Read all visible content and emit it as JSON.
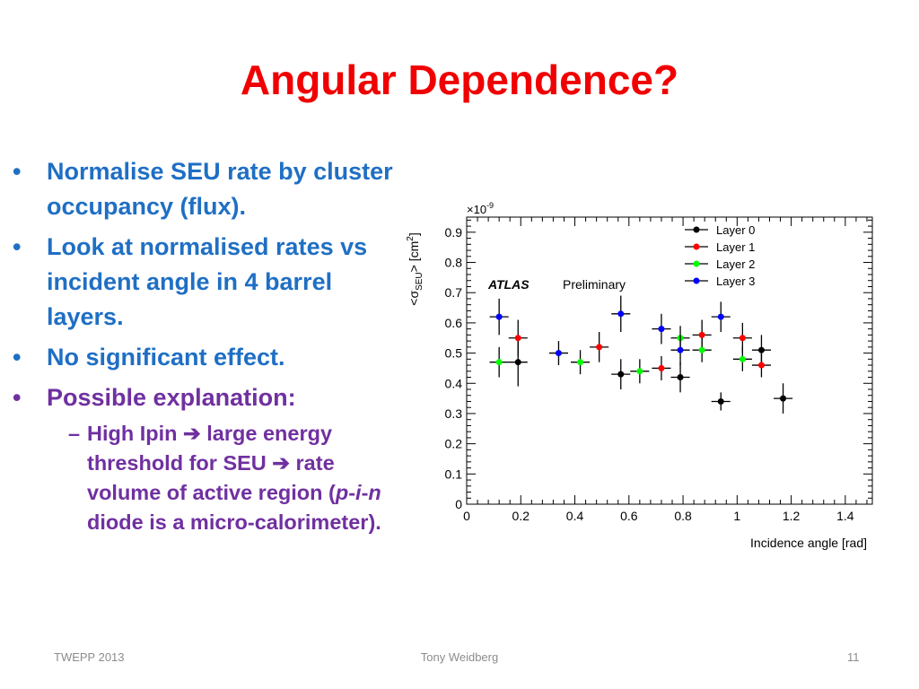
{
  "slide": {
    "title": "Angular Dependence?",
    "bullets": [
      {
        "text": "Normalise SEU rate by cluster occupancy (flux)."
      },
      {
        "text": "Look at normalised rates vs incident angle in 4 barrel layers."
      },
      {
        "text": "No significant effect."
      },
      {
        "text": "Possible explanation:"
      }
    ],
    "sub_bullet": {
      "part1": "High Ipin ",
      "arrow1": "➔",
      "part2": " large energy threshold for SEU ",
      "arrow2": "➔",
      "part3": " rate volume of active region (",
      "p": "p",
      "dash1": "-",
      "i": "i",
      "dash2": "-",
      "n": "n",
      "part4": " diode is a micro-calorimeter)."
    },
    "bullet_char": "•",
    "dash_char": "–"
  },
  "footer": {
    "left": "TWEPP 2013",
    "center": "Tony Weidberg",
    "right": "11"
  },
  "colors": {
    "title": "#f00000",
    "bullet_blue": "#1f6fc4",
    "bullet_purple": "#7030a0",
    "layer0": "#000000",
    "layer1": "#ff0000",
    "layer2": "#00ff00",
    "layer3": "#0000ff"
  },
  "chart_data": {
    "type": "scatter",
    "xlabel": "Incidence angle [rad]",
    "ylabel": "<σSEU> [cm²]",
    "ylabel_parts": {
      "pre": "<σ",
      "sub": "SEU",
      "mid": "> [cm",
      "sup": "2",
      "post": "]"
    },
    "y_multiplier": {
      "times": "×10",
      "exp": "-9"
    },
    "annotation_bold": "ATLAS",
    "annotation_plain": "Preliminary",
    "xlim": [
      0,
      1.5
    ],
    "ylim": [
      0,
      0.95
    ],
    "x_ticks": [
      "0",
      "0.2",
      "0.4",
      "0.6",
      "0.8",
      "1",
      "1.2",
      "1.4"
    ],
    "y_ticks": [
      "0",
      "0.1",
      "0.2",
      "0.3",
      "0.4",
      "0.5",
      "0.6",
      "0.7",
      "0.8",
      "0.9"
    ],
    "legend_position": "top-right",
    "series": [
      {
        "name": "Layer 0",
        "color": "#000000",
        "xerr": 0.035,
        "points": [
          {
            "x": 0.19,
            "y": 0.47,
            "yerr": 0.08
          },
          {
            "x": 0.57,
            "y": 0.43,
            "yerr": 0.05
          },
          {
            "x": 0.79,
            "y": 0.42,
            "yerr": 0.05
          },
          {
            "x": 0.94,
            "y": 0.34,
            "yerr": 0.03
          },
          {
            "x": 1.09,
            "y": 0.51,
            "yerr": 0.05
          },
          {
            "x": 1.17,
            "y": 0.35,
            "yerr": 0.05
          }
        ]
      },
      {
        "name": "Layer 1",
        "color": "#ff0000",
        "xerr": 0.035,
        "points": [
          {
            "x": 0.19,
            "y": 0.55,
            "yerr": 0.06
          },
          {
            "x": 0.49,
            "y": 0.52,
            "yerr": 0.05
          },
          {
            "x": 0.72,
            "y": 0.45,
            "yerr": 0.04
          },
          {
            "x": 0.87,
            "y": 0.56,
            "yerr": 0.05
          },
          {
            "x": 1.02,
            "y": 0.55,
            "yerr": 0.05
          },
          {
            "x": 1.09,
            "y": 0.46,
            "yerr": 0.04
          }
        ]
      },
      {
        "name": "Layer 2",
        "color": "#00ff00",
        "xerr": 0.035,
        "points": [
          {
            "x": 0.12,
            "y": 0.47,
            "yerr": 0.05
          },
          {
            "x": 0.42,
            "y": 0.47,
            "yerr": 0.04
          },
          {
            "x": 0.64,
            "y": 0.44,
            "yerr": 0.04
          },
          {
            "x": 0.79,
            "y": 0.55,
            "yerr": 0.04
          },
          {
            "x": 0.87,
            "y": 0.51,
            "yerr": 0.04
          },
          {
            "x": 1.02,
            "y": 0.48,
            "yerr": 0.04
          }
        ]
      },
      {
        "name": "Layer 3",
        "color": "#0000ff",
        "xerr": 0.035,
        "points": [
          {
            "x": 0.12,
            "y": 0.62,
            "yerr": 0.06
          },
          {
            "x": 0.34,
            "y": 0.5,
            "yerr": 0.04
          },
          {
            "x": 0.57,
            "y": 0.63,
            "yerr": 0.06
          },
          {
            "x": 0.72,
            "y": 0.58,
            "yerr": 0.05
          },
          {
            "x": 0.79,
            "y": 0.51,
            "yerr": 0.05
          },
          {
            "x": 0.94,
            "y": 0.62,
            "yerr": 0.05
          }
        ]
      }
    ]
  }
}
